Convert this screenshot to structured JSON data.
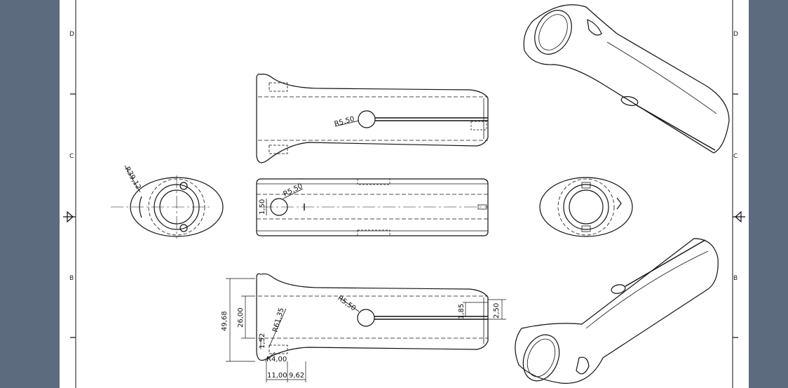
{
  "sheet": {
    "zones_left": [
      "D",
      "C",
      "B"
    ],
    "zones_right": [
      "D",
      "C",
      "B"
    ]
  },
  "dimensions": {
    "front_radius": "R5,50",
    "side_radius": "R5,50",
    "side_offset": "1,50",
    "end_radius": "R39,12",
    "bottom_radius": "R5,50",
    "height_total": "49,68",
    "height_inner": "26,00",
    "small_height": "1,52",
    "fillet_radius": "R61,35",
    "corner_radius": "R4,00",
    "width_a": "11,00",
    "width_b": "9,62",
    "right_dim_a": "1,85",
    "right_dim_b": "2,50"
  }
}
